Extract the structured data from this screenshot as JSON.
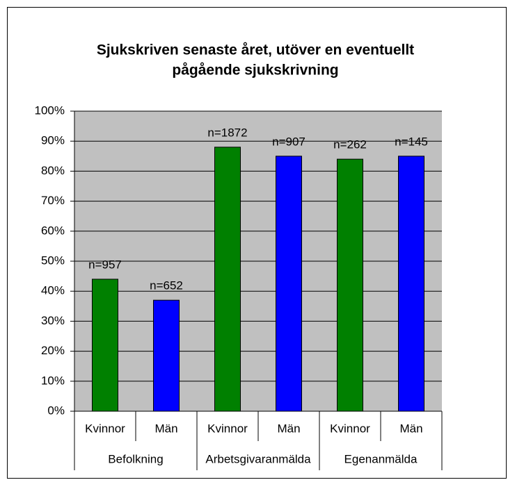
{
  "chart_data": {
    "type": "bar",
    "title": [
      "Sjukskriven senaste året, utöver en eventuellt",
      "pågående sjukskrivning"
    ],
    "groups": [
      {
        "name": "Befolkning",
        "categories": [
          "Kvinnor",
          "Män"
        ],
        "values": [
          44,
          37
        ],
        "annotations": [
          "n=957",
          "n=652"
        ]
      },
      {
        "name": "Arbetsgivaranmälda",
        "categories": [
          "Kvinnor",
          "Män"
        ],
        "values": [
          88,
          85
        ],
        "annotations": [
          "n=1872",
          "n=907"
        ]
      },
      {
        "name": "Egenanmälda",
        "categories": [
          "Kvinnor",
          "Män"
        ],
        "values": [
          84,
          85
        ],
        "annotations": [
          "n=262",
          "n=145"
        ]
      }
    ],
    "colors": [
      "#008000",
      "#0000ff"
    ],
    "ylim": [
      0,
      100
    ],
    "yticks": [
      {
        "value": 0,
        "label": "0%"
      },
      {
        "value": 10,
        "label": "10%"
      },
      {
        "value": 20,
        "label": "20%"
      },
      {
        "value": 30,
        "label": "30%"
      },
      {
        "value": 40,
        "label": "40%"
      },
      {
        "value": 50,
        "label": "50%"
      },
      {
        "value": 60,
        "label": "60%"
      },
      {
        "value": 70,
        "label": "70%"
      },
      {
        "value": 80,
        "label": "80%"
      },
      {
        "value": 90,
        "label": "90%"
      },
      {
        "value": 100,
        "label": "100%"
      }
    ],
    "grid": true
  }
}
